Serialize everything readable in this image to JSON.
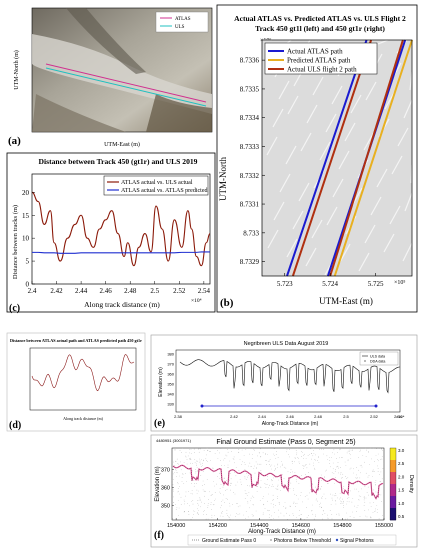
{
  "panels": {
    "a": {
      "letter": "(a)",
      "legend": [
        "ATLAS",
        "ULS"
      ],
      "ylabel": "UTM-North (m)",
      "xlabel": "UTM-East (m)"
    },
    "b": {
      "letter": "(b)",
      "title": "Actual ATLAS vs. Predicted ATLAS vs. ULS Flight 2",
      "subtitle": "Track 450 gt1l (left) and 450 gt1r (right)",
      "ylabel": "UTM-North",
      "xlabel": "UTM-East (m)",
      "y_exponent": "×10⁶",
      "x_exponent": "×10⁵",
      "y_ticks": [
        "8.7336",
        "8.7335",
        "8.7334",
        "8.7333",
        "8.7332",
        "8.7331",
        "8.733",
        "8.7329"
      ],
      "x_ticks": [
        "5.723",
        "5.724",
        "5.725"
      ],
      "legend": [
        "Actual ATLAS path",
        "Predicted ATLAS path",
        "Actual ULS flight 2 path"
      ],
      "colors": {
        "actual": "#1a1ad0",
        "predicted": "#e8b020",
        "uls": "#b03010"
      }
    },
    "c": {
      "letter": "(c)",
      "title": "Distance between Track 450 (gt1r) and ULS 2019",
      "ylabel": "Distance between tracks (m)",
      "xlabel": "Along track distance (m)",
      "x_exponent": "×10⁴",
      "legend": [
        "ATLAS actual vs. ULS actual",
        "ATLAS actual vs. ATLAS predicted"
      ],
      "y_ticks": [
        "0",
        "5",
        "10",
        "15",
        "20"
      ],
      "x_ticks": [
        "2.4",
        "2.42",
        "2.44",
        "2.46",
        "2.48",
        "2.5",
        "2.52",
        "2.54"
      ]
    },
    "d": {
      "letter": "(d)",
      "title": "Distance between ATLAS actual path and ATLAS predicted path 450 gt1r",
      "xlabel": "Along track distance (m)"
    },
    "e": {
      "letter": "(e)",
      "title": "Negribreen ULS Data August 2019",
      "ylabel": "Elevation (m)",
      "xlabel": "Along-Track Distance (m)",
      "legend": [
        "ULS data",
        "DDA data"
      ],
      "y_ticks": [
        "380",
        "370",
        "360",
        "350",
        "340",
        "330"
      ],
      "x_ticks": [
        "2.38",
        "2.42",
        "2.44",
        "2.46",
        "2.48",
        "2.5",
        "2.52",
        "2.54"
      ],
      "x_exponent": "×10⁴"
    },
    "f": {
      "letter": "(f)",
      "header_left": "4480951 (3001971)",
      "title": "Final Ground Estimate (Pass 0, Segment 25)",
      "ylabel": "Elevation (m)",
      "xlabel": "Along-Track Distance (m)",
      "colorbar_label": "Density",
      "y_ticks": [
        "370",
        "360",
        "350"
      ],
      "x_ticks": [
        "154000",
        "154200",
        "154400",
        "154600",
        "154800",
        "155000"
      ],
      "cb_ticks": [
        "3.0",
        "2.5",
        "2.0",
        "1.5",
        "1.0",
        "0.5"
      ],
      "legend": [
        "Ground Estimate Pass 0",
        "Photons Below Threshold",
        "Signal Photons"
      ]
    }
  },
  "chart_data": [
    {
      "type": "line",
      "panel": "b",
      "title": "Actual ATLAS vs. Predicted ATLAS vs. ULS Flight 2",
      "xlabel": "UTM-East (m)",
      "ylabel": "UTM-North",
      "xlim": [
        572250,
        572580
      ],
      "ylim": [
        8732850,
        8733670
      ],
      "series": [
        {
          "name": "Actual ATLAS path",
          "x": [
            572305,
            572480
          ],
          "y": [
            8732850,
            8733670
          ]
        },
        {
          "name": "Actual ATLAS path",
          "x": [
            572395,
            572565
          ],
          "y": [
            8732850,
            8733670
          ]
        },
        {
          "name": "Predicted ATLAS path",
          "x": [
            572410,
            572580
          ],
          "y": [
            8732850,
            8733670
          ]
        },
        {
          "name": "Actual ULS flight 2 path",
          "x": [
            572318,
            572490
          ],
          "y": [
            8732850,
            8733670
          ]
        },
        {
          "name": "Actual ULS flight 2 path",
          "x": [
            572400,
            572560
          ],
          "y": [
            8732850,
            8733670
          ]
        }
      ]
    },
    {
      "type": "line",
      "panel": "c",
      "title": "Distance between Track 450 (gt1r) and ULS 2019",
      "xlabel": "Along track distance (m)",
      "ylabel": "Distance between tracks (m)",
      "xlim": [
        24000,
        25450
      ],
      "ylim": [
        0,
        24
      ],
      "x": [
        24000,
        24050,
        24100,
        24150,
        24180,
        24230,
        24290,
        24350,
        24400,
        24450,
        24500,
        24550,
        24600,
        24650,
        24700,
        24750,
        24780,
        24830,
        24870,
        24920,
        24970,
        25010,
        25060,
        25110,
        25160,
        25220,
        25270,
        25300,
        25340,
        25380,
        25420,
        25450
      ],
      "series": [
        {
          "name": "ATLAS actual vs. ULS actual",
          "values": [
            20,
            18,
            13,
            16,
            9,
            5,
            10,
            13,
            15,
            10,
            8,
            12,
            14,
            16,
            11,
            6,
            9,
            4,
            8,
            11,
            7,
            17,
            12,
            5,
            14,
            8,
            16,
            12,
            6,
            4,
            9,
            11
          ]
        },
        {
          "name": "ATLAS actual vs. ATLAS predicted",
          "values": [
            6.9,
            6.9,
            6.8,
            6.8,
            6.8,
            6.7,
            6.7,
            6.7,
            6.8,
            6.8,
            6.8,
            6.8,
            6.8,
            6.8,
            6.8,
            6.8,
            6.8,
            6.8,
            6.8,
            6.8,
            6.8,
            6.8,
            6.8,
            6.8,
            6.8,
            6.9,
            6.9,
            6.9,
            6.9,
            7.0,
            7.0,
            7.0
          ]
        }
      ]
    },
    {
      "type": "scatter",
      "panel": "f",
      "title": "Final Ground Estimate (Pass 0, Segment 25)",
      "xlabel": "Along-Track Distance (m)",
      "ylabel": "Elevation (m)",
      "xlim": [
        153980,
        155000
      ],
      "ylim": [
        342,
        382
      ]
    }
  ]
}
